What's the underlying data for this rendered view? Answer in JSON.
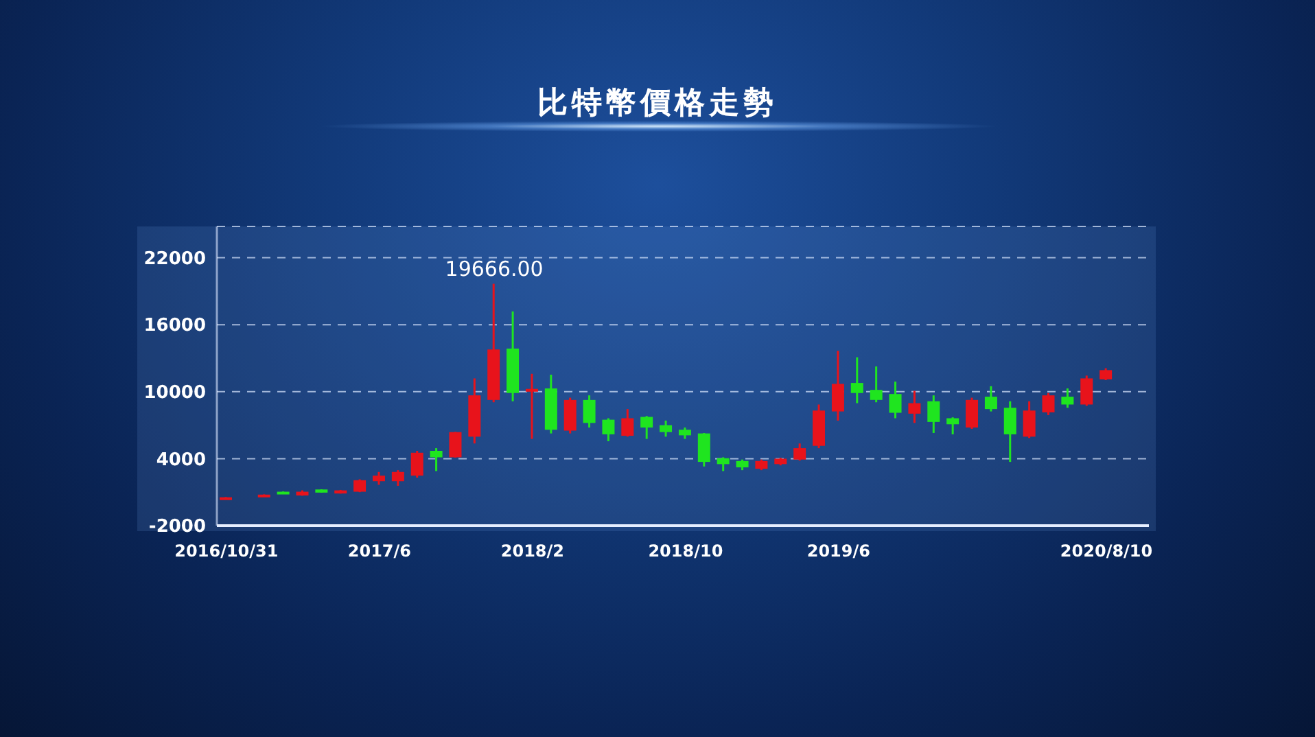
{
  "chart_data": {
    "type": "candlestick",
    "title": "比特幣價格走勢",
    "categories": [
      "2016/10/31",
      null,
      null,
      null,
      null,
      null,
      null,
      null,
      "2017/6",
      null,
      null,
      null,
      null,
      null,
      null,
      null,
      "2018/2",
      null,
      null,
      null,
      null,
      null,
      null,
      null,
      "2018/10",
      null,
      null,
      null,
      null,
      null,
      null,
      null,
      "2019/6",
      null,
      null,
      null,
      null,
      null,
      null,
      null,
      null,
      null,
      null,
      null,
      null,
      null,
      "2020/8/10"
    ],
    "ohlc": [
      [
        450,
        560,
        450,
        540
      ],
      null,
      [
        700,
        800,
        700,
        780
      ],
      [
        1040,
        1060,
        830,
        840
      ],
      [
        700,
        1160,
        680,
        1040
      ],
      [
        1240,
        1260,
        950,
        960
      ],
      [
        880,
        1200,
        870,
        1160
      ],
      [
        1040,
        2150,
        1000,
        2070
      ],
      [
        1980,
        2810,
        1660,
        2480
      ],
      [
        1980,
        2970,
        1570,
        2810
      ],
      [
        2480,
        4700,
        2300,
        4530
      ],
      [
        4700,
        4940,
        2890,
        4120
      ],
      [
        4120,
        6400,
        4100,
        6380
      ],
      [
        5970,
        11190,
        5360,
        9670
      ],
      [
        9260,
        19666,
        9050,
        13780
      ],
      [
        13860,
        17190,
        9140,
        9880
      ],
      [
        10000,
        11600,
        5770,
        10250
      ],
      [
        10290,
        11520,
        6260,
        6590
      ],
      [
        6510,
        9460,
        6260,
        9260
      ],
      [
        9260,
        9670,
        6790,
        7200
      ],
      [
        7490,
        7620,
        5560,
        6180
      ],
      [
        6050,
        8440,
        5970,
        7620
      ],
      [
        7740,
        7820,
        5770,
        6790
      ],
      [
        7000,
        7410,
        5970,
        6380
      ],
      [
        6590,
        6790,
        5770,
        6090
      ],
      [
        6260,
        6300,
        3300,
        3710
      ],
      [
        4040,
        4120,
        2890,
        3510
      ],
      [
        3790,
        3920,
        2970,
        3220
      ],
      [
        3100,
        3920,
        2970,
        3790
      ],
      [
        3510,
        4080,
        3400,
        4000
      ],
      [
        3920,
        5360,
        3830,
        4940
      ],
      [
        5150,
        8850,
        4940,
        8310
      ],
      [
        8230,
        13660,
        7410,
        10700
      ],
      [
        10780,
        13080,
        8970,
        9880
      ],
      [
        10160,
        12260,
        9050,
        9260
      ],
      [
        9790,
        10900,
        7620,
        8110
      ],
      [
        8030,
        10080,
        7200,
        8970
      ],
      [
        9140,
        9670,
        6300,
        7290
      ],
      [
        7620,
        7700,
        6180,
        7080
      ],
      [
        6790,
        9460,
        6670,
        9260
      ],
      [
        9550,
        10490,
        8230,
        8440
      ],
      [
        8560,
        9140,
        3710,
        6180
      ],
      [
        5970,
        9140,
        5850,
        8310
      ],
      [
        8150,
        9880,
        7900,
        9670
      ],
      [
        9550,
        10290,
        8560,
        8850
      ],
      [
        8850,
        11440,
        8730,
        11190
      ],
      [
        11110,
        12100,
        11030,
        11930
      ]
    ],
    "colors": [
      "#e8131b",
      null,
      "#e8131b",
      "#1fe51f",
      "#e8131b",
      "#1fe51f",
      "#e8131b",
      "#e8131b",
      "#e8131b",
      "#e8131b",
      "#e8131b",
      "#1fe51f",
      "#e8131b",
      "#e8131b",
      "#e8131b",
      "#1fe51f",
      "#e8131b",
      "#1fe51f",
      "#e8131b",
      "#1fe51f",
      "#1fe51f",
      "#e8131b",
      "#1fe51f",
      "#1fe51f",
      "#1fe51f",
      "#1fe51f",
      "#1fe51f",
      "#1fe51f",
      "#e8131b",
      "#e8131b",
      "#e8131b",
      "#e8131b",
      "#e8131b",
      "#1fe51f",
      "#1fe51f",
      "#1fe51f",
      "#e8131b",
      "#1fe51f",
      "#1fe51f",
      "#e8131b",
      "#1fe51f",
      "#1fe51f",
      "#e8131b",
      "#e8131b",
      "#1fe51f",
      "#e8131b",
      "#e8131b"
    ],
    "ylim": [
      -2000,
      24800
    ],
    "yticks": [
      -2000,
      4000,
      10000,
      16000,
      22000
    ],
    "grid": "y",
    "annotations": [
      {
        "text": "19666.00",
        "y": 19666
      }
    ]
  }
}
